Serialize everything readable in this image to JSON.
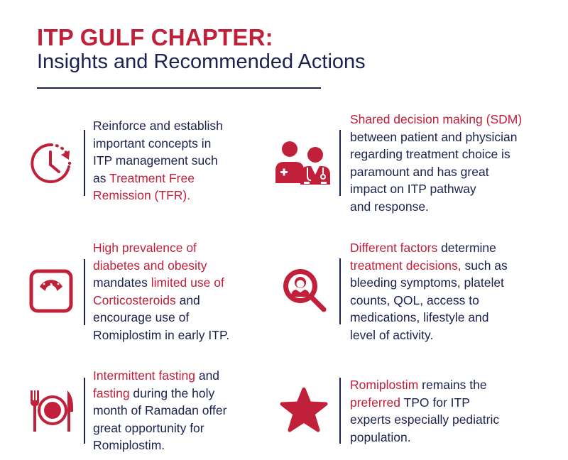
{
  "header": {
    "title": "ITP GULF CHAPTER:",
    "subtitle": "Insights and Recommended Actions"
  },
  "colors": {
    "accent": "#c0203a",
    "navy": "#1c2250"
  },
  "items": [
    {
      "icon": "clock-icon",
      "lines": [
        [
          {
            "t": "Reinforce and establish",
            "red": false
          }
        ],
        [
          {
            "t": "important concepts in",
            "red": false
          }
        ],
        [
          {
            "t": "ITP management such",
            "red": false
          }
        ],
        [
          {
            "t": "as ",
            "red": false
          },
          {
            "t": "Treatment Free",
            "red": true
          }
        ],
        [
          {
            "t": "Remission (TFR).",
            "red": true
          }
        ]
      ]
    },
    {
      "icon": "doctor-patient-icon",
      "lines": [
        [
          {
            "t": "Shared decision making (SDM)",
            "red": true
          }
        ],
        [
          {
            "t": "between patient and physician",
            "red": false
          }
        ],
        [
          {
            "t": "regarding treatment choice is",
            "red": false
          }
        ],
        [
          {
            "t": "paramount and has great",
            "red": false
          }
        ],
        [
          {
            "t": "impact on ITP pathway",
            "red": false
          }
        ],
        [
          {
            "t": "and response.",
            "red": false
          }
        ]
      ]
    },
    {
      "icon": "weight-scale-icon",
      "lines": [
        [
          {
            "t": "High prevalence of",
            "red": true
          }
        ],
        [
          {
            "t": "diabetes and obesity",
            "red": true
          }
        ],
        [
          {
            "t": "mandates ",
            "red": false
          },
          {
            "t": "limited use of",
            "red": true
          }
        ],
        [
          {
            "t": "Corticosteroids",
            "red": true
          },
          {
            "t": " and",
            "red": false
          }
        ],
        [
          {
            "t": "encourage use of",
            "red": false
          }
        ],
        [
          {
            "t": "Romiplostim in early ITP.",
            "red": false
          }
        ]
      ]
    },
    {
      "icon": "person-magnifier-icon",
      "lines": [
        [
          {
            "t": "Different factors",
            "red": true
          },
          {
            "t": " determine",
            "red": false
          }
        ],
        [
          {
            "t": "treatment decisions,",
            "red": true
          },
          {
            "t": " such as",
            "red": false
          }
        ],
        [
          {
            "t": "bleeding symptoms, platelet",
            "red": false
          }
        ],
        [
          {
            "t": "counts, QOL, access to",
            "red": false
          }
        ],
        [
          {
            "t": "medications, lifestyle and",
            "red": false
          }
        ],
        [
          {
            "t": "level of activity.",
            "red": false
          }
        ]
      ]
    },
    {
      "icon": "plate-fork-knife-icon",
      "lines": [
        [
          {
            "t": "Intermittent fasting",
            "red": true
          },
          {
            "t": " and",
            "red": false
          }
        ],
        [
          {
            "t": "fasting",
            "red": true
          },
          {
            "t": " during the holy",
            "red": false
          }
        ],
        [
          {
            "t": "month of Ramadan offer",
            "red": false
          }
        ],
        [
          {
            "t": "great opportunity for",
            "red": false
          }
        ],
        [
          {
            "t": "Romiplostim.",
            "red": false
          }
        ]
      ]
    },
    {
      "icon": "star-icon",
      "lines": [
        [
          {
            "t": "Romiplostim",
            "red": true
          },
          {
            "t": " remains the",
            "red": false
          }
        ],
        [
          {
            "t": "preferred",
            "red": true
          },
          {
            "t": " TPO for ITP",
            "red": false
          }
        ],
        [
          {
            "t": "experts especially pediatric",
            "red": false
          }
        ],
        [
          {
            "t": "population.",
            "red": false
          }
        ]
      ]
    }
  ]
}
